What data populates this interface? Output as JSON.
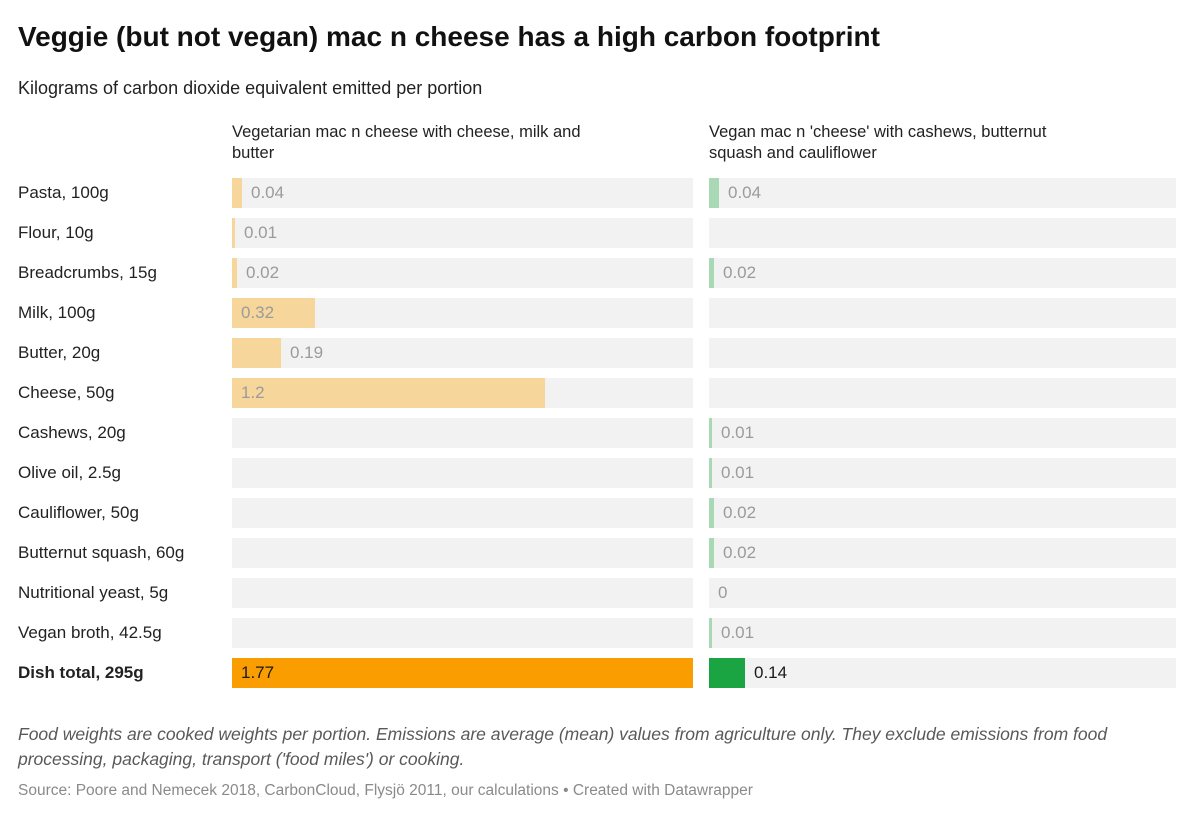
{
  "chart_data": {
    "type": "bar",
    "title": "Veggie (but not vegan) mac n cheese has a high carbon footprint",
    "subtitle": "Kilograms of carbon dioxide equivalent emitted per portion",
    "categories": [
      "Pasta, 100g",
      "Flour, 10g",
      "Breadcrumbs, 15g",
      "Milk, 100g",
      "Butter, 20g",
      "Cheese, 50g",
      "Cashews, 20g",
      "Olive oil, 2.5g",
      "Cauliflower, 50g",
      "Butternut squash, 60g",
      "Nutritional yeast, 5g",
      "Vegan broth, 42.5g",
      "Dish total, 295g"
    ],
    "total_row_index": 12,
    "xlim": [
      0,
      1.77
    ],
    "grid": false,
    "legend_position": "column-headers",
    "series": [
      {
        "name": "Vegetarian mac n cheese with cheese, milk and butter",
        "values": [
          0.04,
          0.01,
          0.02,
          0.32,
          0.19,
          1.2,
          null,
          null,
          null,
          null,
          null,
          null,
          1.77
        ],
        "labels": [
          "0.04",
          "0.01",
          "0.02",
          "0.32",
          "0.19",
          "1.2",
          "",
          "",
          "",
          "",
          "",
          "",
          "1.77"
        ],
        "bar_color": "#f6d69b",
        "total_color": "#fa9d00"
      },
      {
        "name": "Vegan mac n 'cheese' with cashews, butternut squash and cauliflower",
        "values": [
          0.04,
          null,
          0.02,
          null,
          null,
          null,
          0.01,
          0.01,
          0.02,
          0.02,
          0,
          0.01,
          0.14
        ],
        "labels": [
          "0.04",
          "",
          "0.02",
          "",
          "",
          "",
          "0.01",
          "0.01",
          "0.02",
          "0.02",
          "0",
          "0.01",
          "0.14"
        ],
        "bar_color": "#a9d8b4",
        "total_color": "#1ba442"
      }
    ]
  },
  "colors": {
    "track": "#f2f2f2",
    "value_label": "#9b9b9b",
    "total_value_label": "#1a1a1a",
    "row_label": "#222222",
    "title": "#111111"
  },
  "footer": {
    "note": "Food weights are cooked weights per portion. Emissions are average (mean) values from agriculture only. They exclude emissions from food processing, packaging, transport ('food miles') or cooking.",
    "source": "Source: Poore and Nemecek 2018, CarbonCloud, Flysjö 2011, our calculations • Created with Datawrapper"
  }
}
